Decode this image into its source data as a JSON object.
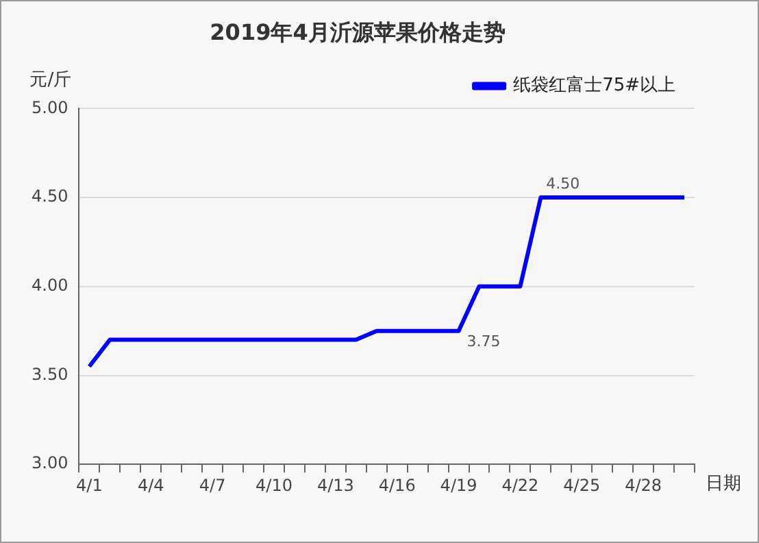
{
  "chart_data": {
    "type": "line",
    "title": "2019年4月沂源苹果价格走势",
    "xlabel": "日期",
    "ylabel": "元/斤",
    "categories": [
      "4/1",
      null,
      null,
      "4/4",
      null,
      null,
      "4/7",
      null,
      null,
      "4/10",
      null,
      null,
      "4/13",
      null,
      null,
      "4/16",
      null,
      null,
      "4/19",
      null,
      null,
      "4/22",
      null,
      null,
      "4/25",
      null,
      null,
      "4/28",
      null,
      null
    ],
    "series": [
      {
        "name": "纸袋红富士75#以上",
        "color": "#0000ff",
        "values": [
          3.55,
          3.7,
          3.7,
          3.7,
          3.7,
          3.7,
          3.7,
          3.7,
          3.7,
          3.7,
          3.7,
          3.7,
          3.7,
          3.7,
          3.75,
          3.75,
          3.75,
          3.75,
          3.75,
          4.0,
          4.0,
          4.0,
          4.5,
          4.5,
          4.5,
          4.5,
          4.5,
          4.5,
          4.5,
          4.5
        ],
        "value_labels": [
          null,
          null,
          null,
          null,
          null,
          null,
          null,
          null,
          null,
          null,
          null,
          null,
          null,
          null,
          null,
          null,
          null,
          null,
          "3.75",
          null,
          null,
          null,
          "4.50",
          null,
          null,
          null,
          null,
          null,
          null,
          null
        ]
      }
    ],
    "ylim": [
      3,
      5
    ],
    "yticks": [
      {
        "value": 3,
        "label": "3.00"
      },
      {
        "value": 3.5,
        "label": "3.50"
      },
      {
        "value": 4,
        "label": "4.00"
      },
      {
        "value": 4.5,
        "label": "4.50"
      },
      {
        "value": 5,
        "label": "5.00"
      }
    ],
    "grid": "y",
    "legend": "top right",
    "marker": "none",
    "line_style": "solid"
  }
}
